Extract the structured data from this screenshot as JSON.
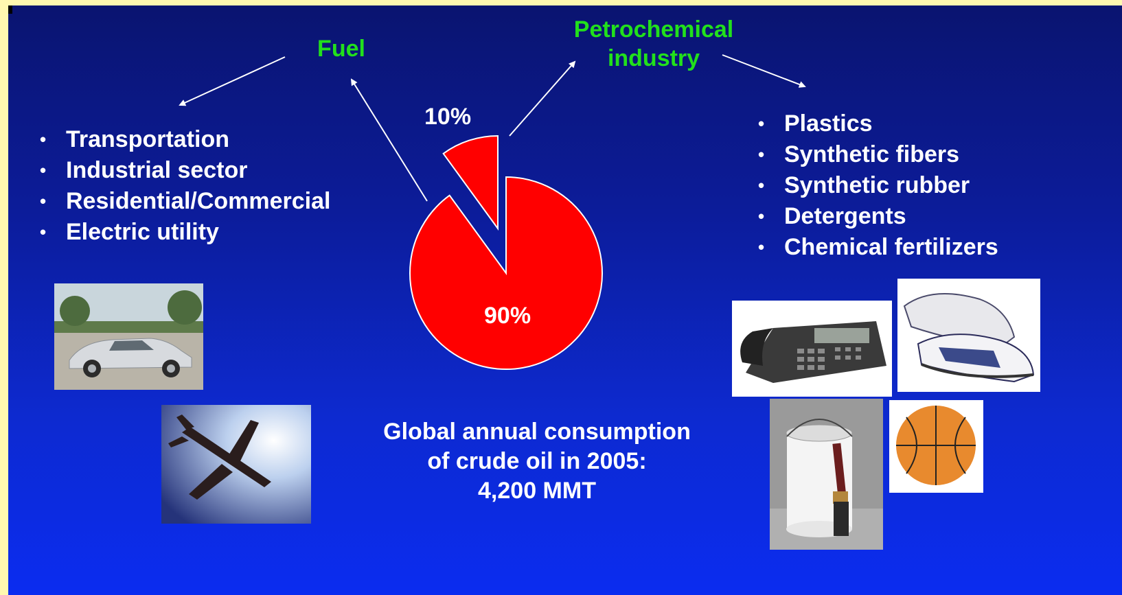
{
  "chart_data": {
    "type": "pie",
    "title": "",
    "slices": [
      {
        "label": "Fuel",
        "value": 90,
        "value_label": "90%",
        "color": "#ff0000"
      },
      {
        "label": "Petrochemical industry",
        "value": 10,
        "value_label": "10%",
        "color": "#ff0000"
      }
    ],
    "exploded_slice": "Petrochemical industry",
    "slice_border_color": "#ffffff"
  },
  "labels": {
    "fuel": "Fuel",
    "petro_line1": "Petrochemical",
    "petro_line2": "industry",
    "pct_small": "10%",
    "pct_large": "90%"
  },
  "fuel_uses": [
    "Transportation",
    "Industrial sector",
    "Residential/Commercial",
    "Electric utility"
  ],
  "petro_products": [
    "Plastics",
    "Synthetic fibers",
    "Synthetic rubber",
    "Detergents",
    "Chemical fertilizers"
  ],
  "summary": {
    "line1": "Global annual consumption",
    "line2": "of crude oil in 2005:",
    "line3": "4,200 MMT"
  },
  "colors": {
    "background_top": "#0a1470",
    "background_bottom": "#0b2cf0",
    "label_green": "#22e01c",
    "text_white": "#ffffff",
    "pie_red": "#ff0000",
    "frame_yellow": "#fff8b0"
  },
  "icons": [
    "car-photo",
    "airplane-photo",
    "telephone-photo",
    "sneakers-photo",
    "paint-can-photo",
    "basketball-photo"
  ]
}
